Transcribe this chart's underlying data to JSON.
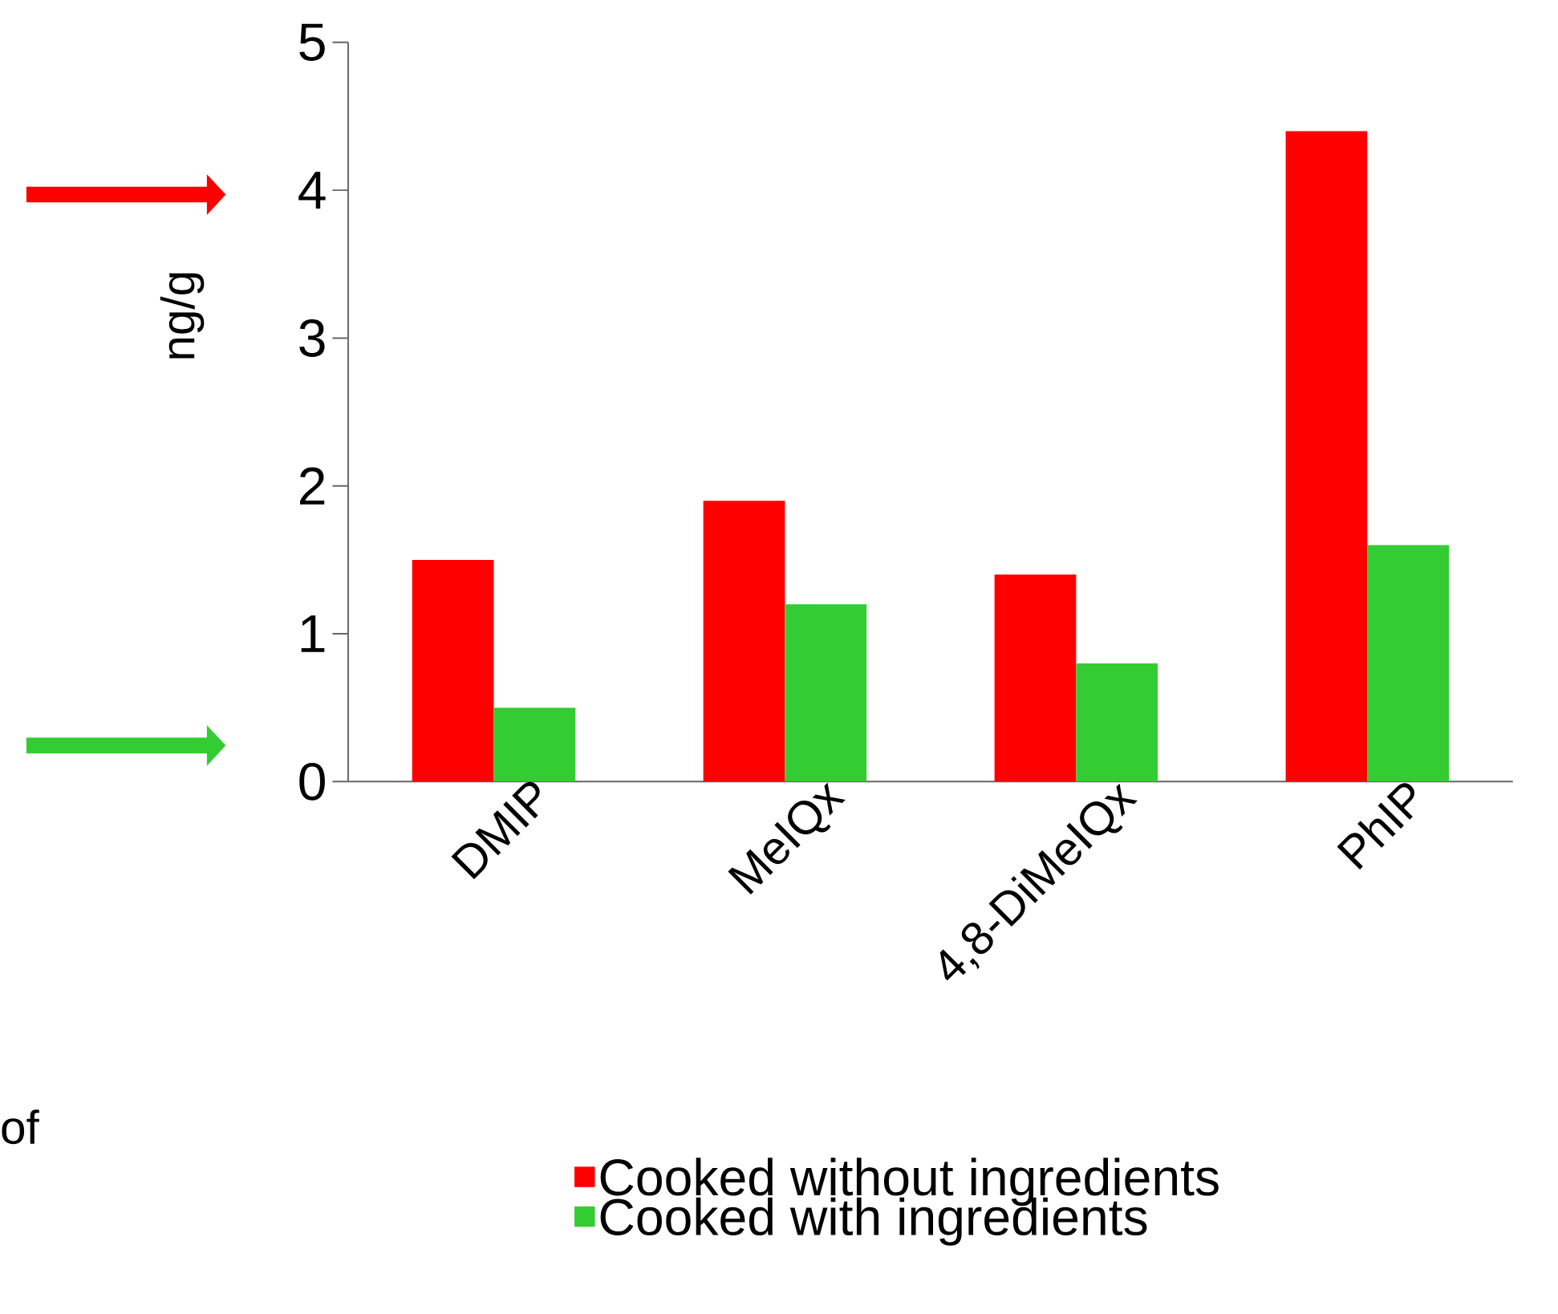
{
  "chart_data": {
    "type": "bar",
    "ylabel": "ng/g",
    "categories": [
      "DMIP",
      "MeIQx",
      "4,8-DiMeIQx",
      "PhIP"
    ],
    "series": [
      {
        "name": "Cooked without ingredients",
        "color": "#ff0000",
        "values": [
          1.5,
          1.9,
          1.4,
          4.4
        ]
      },
      {
        "name": "Cooked with ingredients",
        "color": "#33cc33",
        "values": [
          0.5,
          1.2,
          0.8,
          1.6
        ]
      }
    ],
    "ylim": [
      0,
      5
    ],
    "yticks": [
      0,
      1,
      2,
      3,
      4,
      5
    ],
    "grid": false,
    "legend": "bottom",
    "annotations": [
      "of"
    ]
  }
}
